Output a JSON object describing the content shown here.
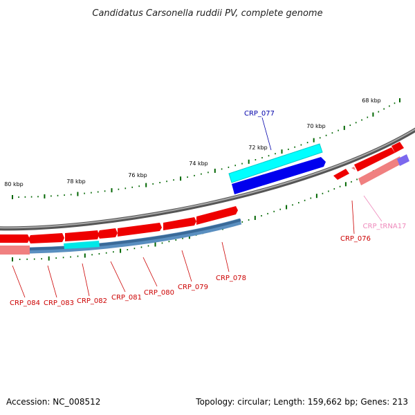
{
  "title": "Candidatus Carsonella ruddii PV, complete genome",
  "footer": {
    "accession": "Accession: NC_008512",
    "topology": "Topology: circular; Length: 159,662 bp; Genes: 213"
  },
  "ticks": [
    "68 kbp",
    "70 kbp",
    "72 kbp",
    "74 kbp",
    "76 kbp",
    "78 kbp",
    "80 kbp"
  ],
  "genes": [
    {
      "id": "CRP_077",
      "color": "#0000aa"
    },
    {
      "id": "CRP_076",
      "color": "#cc0000"
    },
    {
      "id": "CRP_tRNA17",
      "color": "#ee88bb"
    },
    {
      "id": "CRP_078",
      "color": "#cc0000"
    },
    {
      "id": "CRP_079",
      "color": "#cc0000"
    },
    {
      "id": "CRP_080",
      "color": "#cc0000"
    },
    {
      "id": "CRP_081",
      "color": "#cc0000"
    },
    {
      "id": "CRP_082",
      "color": "#cc0000"
    },
    {
      "id": "CRP_083",
      "color": "#cc0000"
    },
    {
      "id": "CRP_084",
      "color": "#cc0000"
    }
  ],
  "colors": {
    "gene_forward": "#ff0000",
    "gene_reverse_light": "#f08080",
    "cds_blue": "#0000ee",
    "feature_cyan": "#00ffff",
    "backbone": "#888888",
    "gc_track": "#4a7fb0",
    "tick_green": "#006600"
  }
}
